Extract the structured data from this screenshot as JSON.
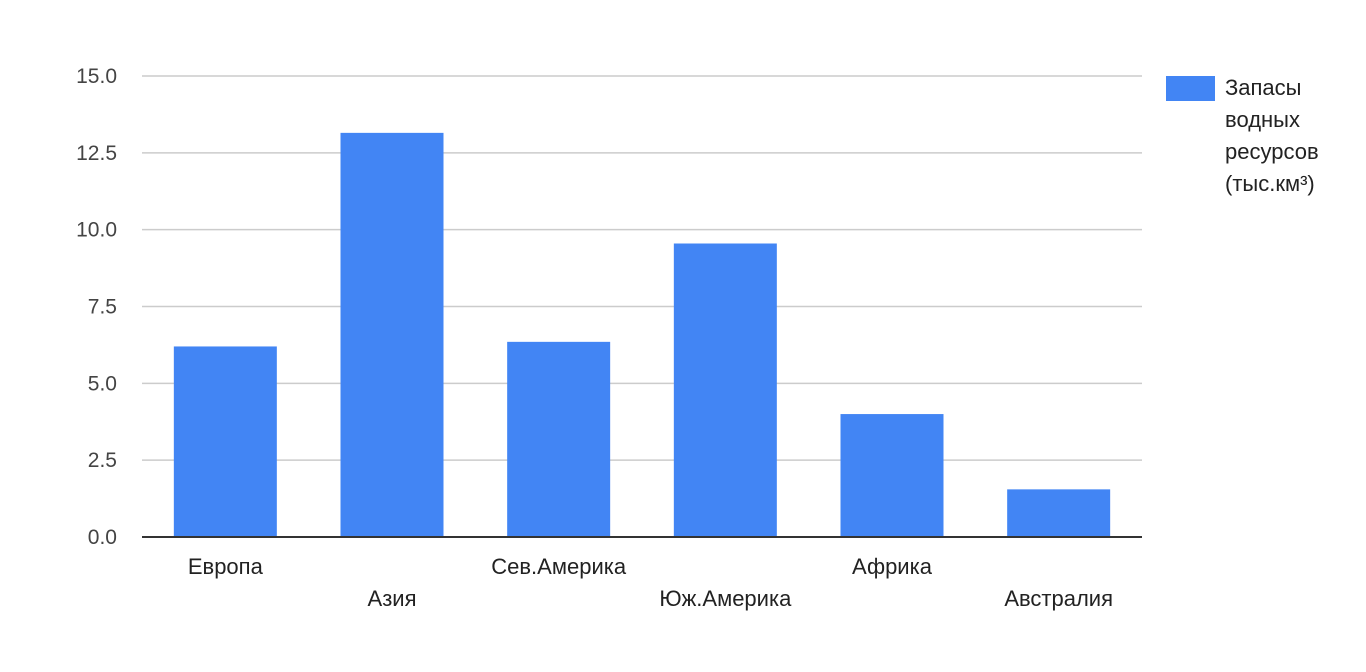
{
  "chart_data": {
    "type": "bar",
    "categories": [
      "Европа",
      "Азия",
      "Сев.Америка",
      "Юж.Америка",
      "Африка",
      "Австралия"
    ],
    "series": [
      {
        "name": "Запасы водных ресурсов (тыс.км³)",
        "values": [
          6.2,
          13.15,
          6.35,
          9.55,
          4.0,
          1.55
        ],
        "color": "#4285f4"
      }
    ],
    "yticks": [
      "0.0",
      "2.5",
      "5.0",
      "7.5",
      "10.0",
      "12.5",
      "15.0"
    ],
    "ylim": [
      0,
      15
    ],
    "grid": true,
    "legend_position": "right",
    "gridline_color": "#cccccc",
    "axis_color": "#333333"
  }
}
